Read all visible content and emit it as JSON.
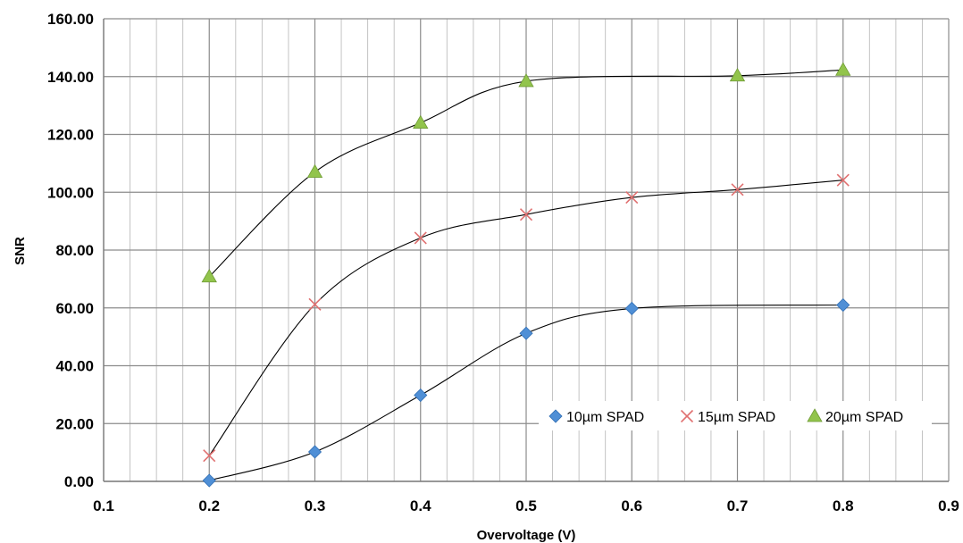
{
  "chart_data": {
    "type": "scatter",
    "title": "",
    "xlabel": "Overvoltage (V)",
    "ylabel": "SNR",
    "xlim": [
      0.1,
      0.9
    ],
    "ylim": [
      0,
      160
    ],
    "xticks": [
      "0.1",
      "0.2",
      "0.3",
      "0.4",
      "0.5",
      "0.6",
      "0.7",
      "0.8",
      "0.9"
    ],
    "yticks": [
      "0.00",
      "20.00",
      "40.00",
      "60.00",
      "80.00",
      "100.00",
      "120.00",
      "140.00",
      "160.00"
    ],
    "grid": true,
    "legend_position": "bottom-right",
    "trendlines": "smooth black curve fitted through each series",
    "series": [
      {
        "name": "10µm SPAD",
        "marker": "diamond",
        "color": "#4F8FD6",
        "x": [
          0.2,
          0.3,
          0.4,
          0.5,
          0.6,
          0.8
        ],
        "y": [
          0.3,
          10.2,
          29.8,
          51.2,
          59.8,
          61.0
        ]
      },
      {
        "name": "15µm SPAD",
        "marker": "cross",
        "color": "#E07070",
        "x": [
          0.2,
          0.3,
          0.4,
          0.5,
          0.6,
          0.7,
          0.8
        ],
        "y": [
          8.9,
          61.2,
          84.2,
          92.3,
          98.2,
          100.9,
          104.2
        ]
      },
      {
        "name": "20µm SPAD",
        "marker": "triangle",
        "color": "#92C44C",
        "x": [
          0.2,
          0.3,
          0.4,
          0.5,
          0.7,
          0.8
        ],
        "y": [
          70.8,
          107.0,
          124.0,
          138.4,
          140.3,
          142.3
        ]
      }
    ]
  }
}
